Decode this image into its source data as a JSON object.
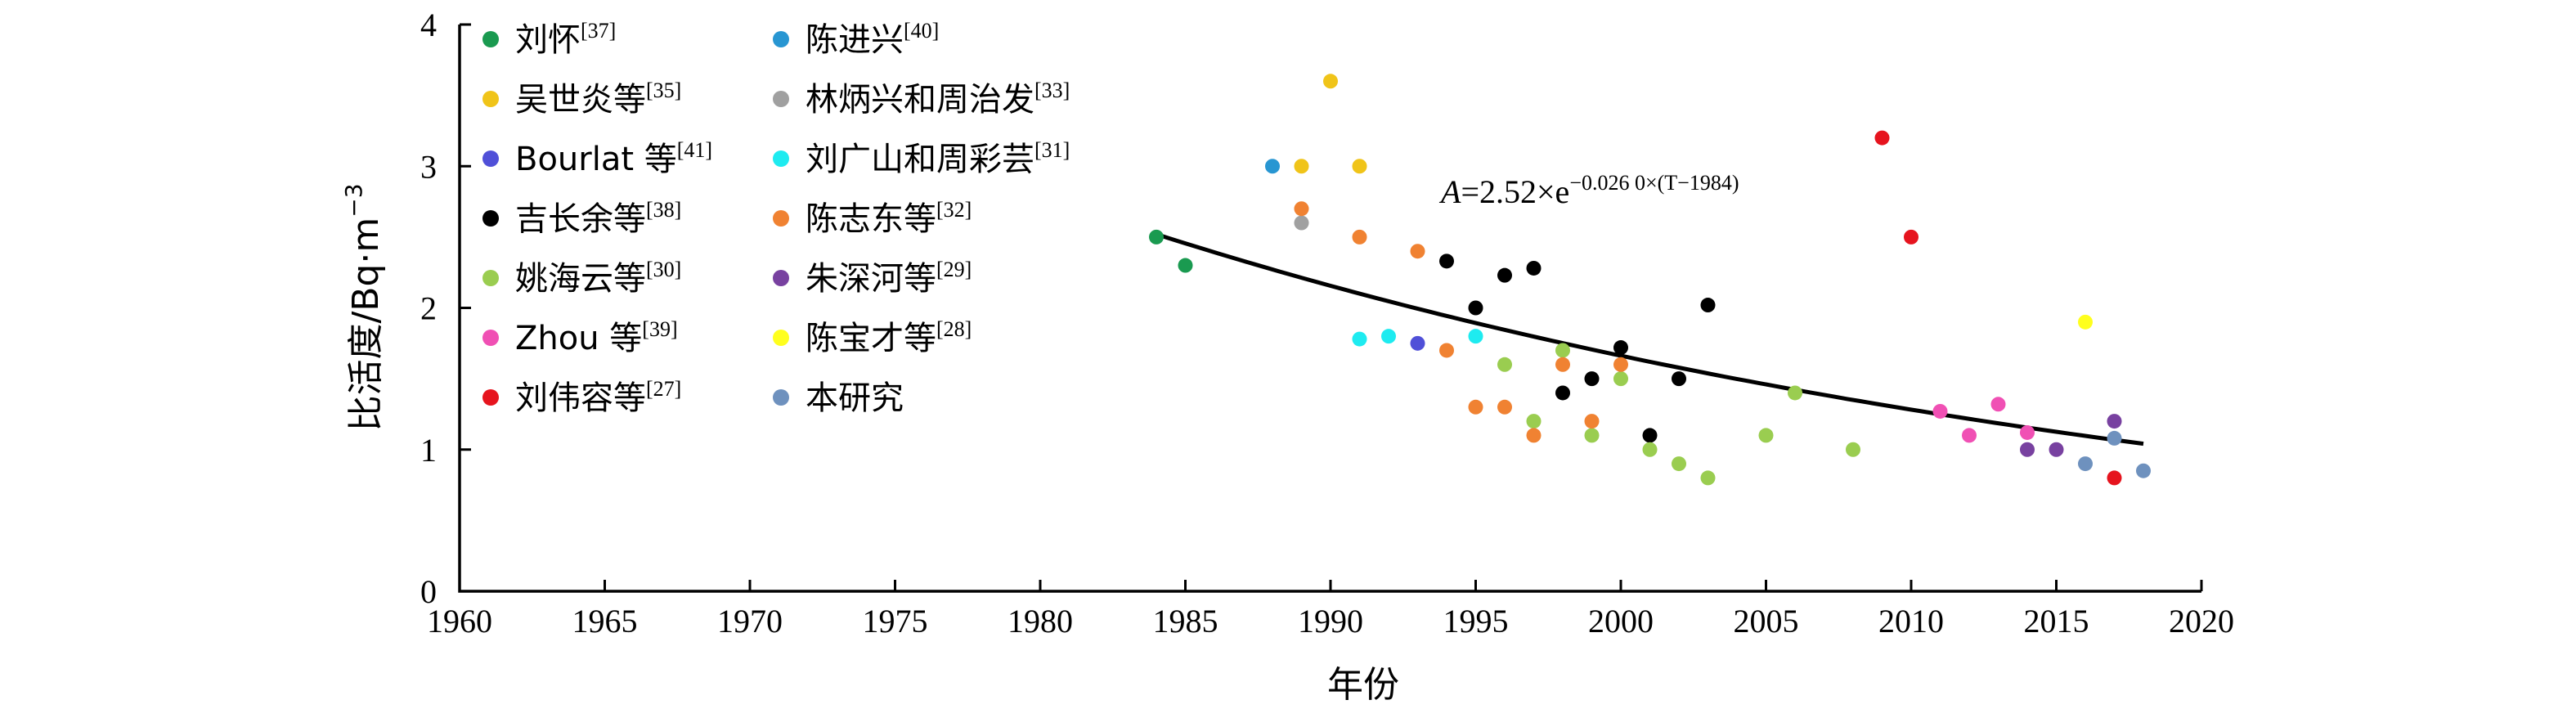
{
  "chart_data": {
    "type": "scatter",
    "xlabel": "年份",
    "ylabel": "比活度/Bq·m",
    "ylabel_sup": "−3",
    "xlim": [
      1960,
      2020
    ],
    "ylim": [
      0,
      4
    ],
    "x_ticks": [
      1960,
      1965,
      1970,
      1975,
      1980,
      1985,
      1990,
      1995,
      2000,
      2005,
      2010,
      2015,
      2020
    ],
    "y_ticks": [
      0,
      1,
      2,
      3,
      4
    ],
    "grid": false,
    "legend_position": "top-left",
    "fit": {
      "label_main": "=2.52×e",
      "label_exp": "−0.026 0×(T−1984)",
      "A": 2.52,
      "k": 0.026,
      "t0": 1984,
      "x_range": [
        1984,
        2018
      ]
    },
    "series": [
      {
        "name": "刘怀",
        "ref": "[37]",
        "color": "#1a9a50",
        "points": [
          [
            1984,
            2.5
          ],
          [
            1985,
            2.3
          ]
        ]
      },
      {
        "name": "吴世炎等",
        "ref": "[35]",
        "color": "#f0c419",
        "points": [
          [
            1989,
            3.0
          ],
          [
            1990,
            3.6
          ],
          [
            1991,
            3.0
          ]
        ]
      },
      {
        "name": "Bourlat 等",
        "ref": "[41]",
        "color": "#5050d8",
        "points": [
          [
            1993,
            1.75
          ]
        ]
      },
      {
        "name": "吉长余等",
        "ref": "[38]",
        "color": "#000000",
        "points": [
          [
            1994,
            2.33
          ],
          [
            1995,
            2.0
          ],
          [
            1996,
            2.23
          ],
          [
            1997,
            2.28
          ],
          [
            1998,
            1.4
          ],
          [
            1999,
            1.5
          ],
          [
            2000,
            1.72
          ],
          [
            2001,
            1.1
          ],
          [
            2002,
            1.5
          ],
          [
            2003,
            2.02
          ]
        ]
      },
      {
        "name": "姚海云等",
        "ref": "[30]",
        "color": "#9acd50",
        "points": [
          [
            1996,
            1.6
          ],
          [
            1997,
            1.2
          ],
          [
            1998,
            1.7
          ],
          [
            1999,
            1.1
          ],
          [
            2000,
            1.5
          ],
          [
            2001,
            1.0
          ],
          [
            2002,
            0.9
          ],
          [
            2003,
            0.8
          ],
          [
            2005,
            1.1
          ],
          [
            2006,
            1.4
          ],
          [
            2008,
            1.0
          ]
        ]
      },
      {
        "name": "Zhou 等",
        "ref": "[39]",
        "color": "#f050b4",
        "points": [
          [
            2011,
            1.27
          ],
          [
            2012,
            1.1
          ],
          [
            2013,
            1.32
          ],
          [
            2014,
            1.12
          ]
        ]
      },
      {
        "name": "刘伟容等",
        "ref": "[27]",
        "color": "#e6141e",
        "points": [
          [
            2009,
            3.2
          ],
          [
            2010,
            2.5
          ],
          [
            2017,
            0.8
          ]
        ]
      },
      {
        "name": "陈进兴",
        "ref": "[40]",
        "color": "#2896d2",
        "points": [
          [
            1988,
            3.0
          ]
        ]
      },
      {
        "name": "林炳兴和周治发",
        "ref": "[33]",
        "color": "#a0a0a0",
        "points": [
          [
            1989,
            2.6
          ]
        ]
      },
      {
        "name": "刘广山和周彩芸",
        "ref": "[31]",
        "color": "#1eebf0",
        "points": [
          [
            1991,
            1.78
          ],
          [
            1992,
            1.8
          ],
          [
            1995,
            1.8
          ]
        ]
      },
      {
        "name": "陈志东等",
        "ref": "[32]",
        "color": "#f08232",
        "points": [
          [
            1989,
            2.7
          ],
          [
            1991,
            2.5
          ],
          [
            1993,
            2.4
          ],
          [
            1994,
            1.7
          ],
          [
            1995,
            1.3
          ],
          [
            1996,
            1.3
          ],
          [
            1997,
            1.1
          ],
          [
            1998,
            1.6
          ],
          [
            1999,
            1.2
          ],
          [
            2000,
            1.6
          ]
        ]
      },
      {
        "name": "朱深河等",
        "ref": "[29]",
        "color": "#7841a0",
        "points": [
          [
            2014,
            1.0
          ],
          [
            2015,
            1.0
          ],
          [
            2017,
            1.2
          ]
        ]
      },
      {
        "name": "陈宝才等",
        "ref": "[28]",
        "color": "#ffff1e",
        "points": [
          [
            2016,
            1.9
          ]
        ]
      },
      {
        "name": "本研究",
        "ref": "",
        "color": "#6e91be",
        "points": [
          [
            2016,
            0.9
          ],
          [
            2017,
            1.08
          ],
          [
            2018,
            0.85
          ]
        ]
      }
    ]
  }
}
